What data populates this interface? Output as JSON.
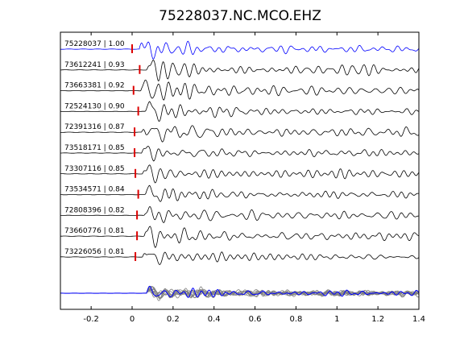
{
  "chart_data": {
    "type": "line",
    "title": "75228037.NC.MCO.EHZ",
    "xlabel": "",
    "ylabel": "",
    "xlim": [
      -0.35,
      1.4
    ],
    "xticks": [
      -0.2,
      0,
      0.2,
      0.4,
      0.6,
      0.8,
      1,
      1.2,
      1.4
    ],
    "xtick_labels": [
      "-0.2",
      "0",
      "0.2",
      "0.4",
      "0.6",
      "0.8",
      "1",
      "1.2",
      "1.4"
    ],
    "grid": false,
    "legend": "none",
    "colors": {
      "reference": "#0000ff",
      "trace": "#000000",
      "stack": "#7f7f7f",
      "pick": "#dd0000"
    },
    "traces": [
      {
        "id": "75228037",
        "cc": "1.00",
        "label": "75228037 | 1.00",
        "pick_time": 0.0,
        "reference": true
      },
      {
        "id": "73612241",
        "cc": "0.93",
        "label": "73612241 | 0.93",
        "pick_time": 0.037
      },
      {
        "id": "73663381",
        "cc": "0.92",
        "label": "73663381 | 0.92",
        "pick_time": 0.007
      },
      {
        "id": "72524130",
        "cc": "0.90",
        "label": "72524130 | 0.90",
        "pick_time": 0.03
      },
      {
        "id": "72391316",
        "cc": "0.87",
        "label": "72391316 | 0.87",
        "pick_time": 0.012
      },
      {
        "id": "73518171",
        "cc": "0.85",
        "label": "73518171 | 0.85",
        "pick_time": 0.012
      },
      {
        "id": "73307116",
        "cc": "0.85",
        "label": "73307116 | 0.85",
        "pick_time": 0.016
      },
      {
        "id": "73534571",
        "cc": "0.84",
        "label": "73534571 | 0.84",
        "pick_time": 0.03
      },
      {
        "id": "72808396",
        "cc": "0.82",
        "label": "72808396 | 0.82",
        "pick_time": 0.024
      },
      {
        "id": "73660776",
        "cc": "0.81",
        "label": "73660776 | 0.81",
        "pick_time": 0.024
      },
      {
        "id": "73226056",
        "cc": "0.81",
        "label": "73226056 | 0.81",
        "pick_time": 0.016
      }
    ],
    "overlay": {
      "aligned_onset": 0.07
    }
  }
}
